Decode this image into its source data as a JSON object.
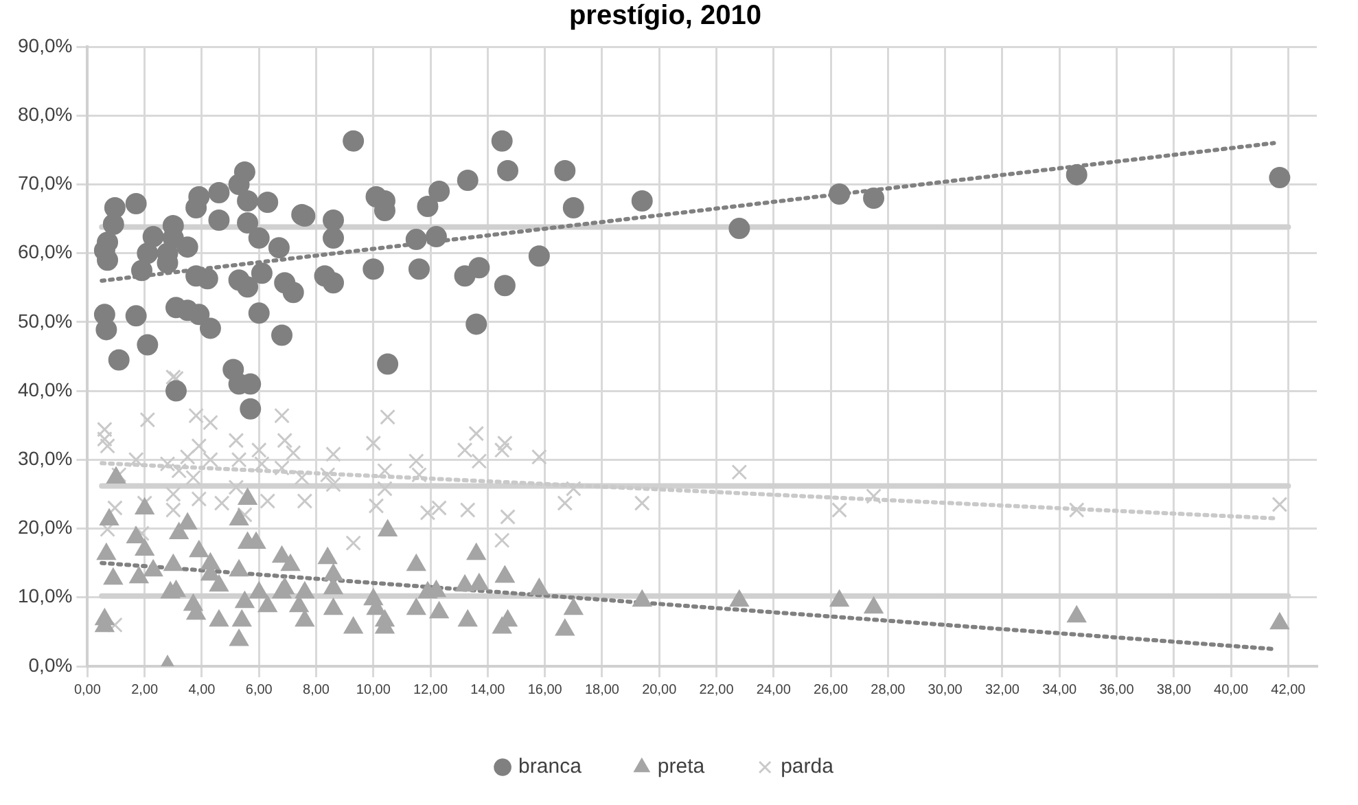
{
  "chart_data": {
    "type": "scatter",
    "title": "prestígio, 2010",
    "xlim": [
      0,
      43
    ],
    "xticks": [
      {
        "value": 0,
        "label": "0,00"
      },
      {
        "value": 2,
        "label": "2,00"
      },
      {
        "value": 4,
        "label": "4,00"
      },
      {
        "value": 6,
        "label": "6,00"
      },
      {
        "value": 8,
        "label": "8,00"
      },
      {
        "value": 10,
        "label": "10,00"
      },
      {
        "value": 12,
        "label": "12,00"
      },
      {
        "value": 14,
        "label": "14,00"
      },
      {
        "value": 16,
        "label": "16,00"
      },
      {
        "value": 18,
        "label": "18,00"
      },
      {
        "value": 20,
        "label": "20,00"
      },
      {
        "value": 22,
        "label": "22,00"
      },
      {
        "value": 24,
        "label": "24,00"
      },
      {
        "value": 26,
        "label": "26,00"
      },
      {
        "value": 28,
        "label": "28,00"
      },
      {
        "value": 30,
        "label": "30,00"
      },
      {
        "value": 32,
        "label": "32,00"
      },
      {
        "value": 34,
        "label": "34,00"
      },
      {
        "value": 36,
        "label": "36,00"
      },
      {
        "value": 38,
        "label": "38,00"
      },
      {
        "value": 40,
        "label": "40,00"
      },
      {
        "value": 42,
        "label": "42,00"
      }
    ],
    "ylim": [
      0,
      90
    ],
    "yticks": [
      {
        "value": 0,
        "label": "0,0%"
      },
      {
        "value": 10,
        "label": "10,0%"
      },
      {
        "value": 20,
        "label": "20,0%"
      },
      {
        "value": 30,
        "label": "30,0%"
      },
      {
        "value": 40,
        "label": "40,0%"
      },
      {
        "value": 50,
        "label": "50,0%"
      },
      {
        "value": 60,
        "label": "60,0%"
      },
      {
        "value": 70,
        "label": "70,0%"
      },
      {
        "value": 80,
        "label": "80,0%"
      },
      {
        "value": 90,
        "label": "90,0%"
      }
    ],
    "grid": true,
    "legend": "bottom",
    "series": [
      {
        "name": "branca",
        "color": "#808080",
        "marker": "circle",
        "x": [
          0.6,
          0.7,
          0.7,
          0.96,
          0.91,
          0.6,
          0.66,
          1.1,
          1.7,
          2.3,
          2.1,
          1.9,
          1.7,
          2.1,
          3.0,
          3.0,
          2.8,
          2.8,
          3.5,
          3.9,
          3.8,
          4.6,
          4.6,
          3.8,
          4.2,
          3.1,
          3.5,
          3.9,
          4.3,
          5.1,
          5.7,
          3.1,
          5.3,
          5.7,
          5.5,
          5.3,
          5.6,
          6.3,
          5.6,
          6.0,
          6.7,
          6.1,
          5.3,
          5.6,
          6.0,
          6.8,
          6.9,
          7.2,
          7.5,
          7.6,
          9.3,
          8.6,
          8.6,
          8.3,
          8.6,
          10.0,
          10.1,
          10.4,
          10.4,
          10.5,
          11.9,
          12.3,
          11.5,
          12.2,
          11.6,
          13.3,
          13.2,
          13.7,
          13.6,
          14.5,
          14.7,
          14.6,
          16.7,
          17.0,
          15.8,
          19.4,
          22.8,
          26.3,
          27.5,
          34.6,
          41.7
        ],
        "values": [
          60.4,
          61.6,
          59.0,
          66.6,
          64.2,
          51.1,
          48.9,
          44.5,
          67.2,
          62.4,
          60.0,
          57.5,
          50.9,
          46.7,
          64.0,
          62.2,
          60.0,
          58.6,
          60.9,
          68.2,
          66.6,
          68.8,
          64.8,
          56.7,
          56.3,
          52.1,
          51.7,
          51.1,
          49.1,
          43.1,
          41.0,
          40.0,
          41.0,
          37.4,
          71.8,
          70.0,
          67.6,
          67.4,
          64.4,
          62.2,
          60.8,
          57.1,
          56.1,
          55.1,
          51.3,
          48.1,
          55.7,
          54.3,
          65.6,
          65.4,
          76.3,
          64.8,
          62.2,
          56.7,
          55.7,
          57.7,
          68.2,
          67.6,
          66.2,
          43.9,
          66.8,
          69.0,
          62.0,
          62.4,
          57.7,
          70.6,
          56.7,
          57.9,
          49.7,
          76.3,
          72.0,
          55.3,
          72.0,
          66.6,
          59.6,
          67.6,
          63.6,
          68.6,
          68.0,
          71.4,
          71.0
        ]
      },
      {
        "name": "preta",
        "color": "#a5a5a5",
        "marker": "triangle",
        "x": [
          0.6,
          0.6,
          0.66,
          0.76,
          1.0,
          0.9,
          1.8,
          2.0,
          2.3,
          2.0,
          1.7,
          2.8,
          2.9,
          3.1,
          3.0,
          3.2,
          3.5,
          3.7,
          3.8,
          3.9,
          4.3,
          4.3,
          4.6,
          4.6,
          5.3,
          5.3,
          5.4,
          5.5,
          5.6,
          5.9,
          5.3,
          5.6,
          6.0,
          6.3,
          6.8,
          7.1,
          6.9,
          6.8,
          7.6,
          7.4,
          7.6,
          8.4,
          8.6,
          8.6,
          8.6,
          9.3,
          10.0,
          10.1,
          10.4,
          10.4,
          10.5,
          11.5,
          11.5,
          11.9,
          12.3,
          12.2,
          13.3,
          13.2,
          13.6,
          13.7,
          14.6,
          14.5,
          14.7,
          14.6,
          15.8,
          17.0,
          16.7,
          19.4,
          22.8,
          26.3,
          27.5,
          34.6,
          41.7
        ],
        "values": [
          5.8,
          6.8,
          16.3,
          21.3,
          27.4,
          12.7,
          12.9,
          16.9,
          13.9,
          22.9,
          18.7,
          0,
          10.7,
          10.9,
          14.7,
          19.3,
          20.7,
          8.9,
          7.6,
          16.7,
          14.9,
          13.3,
          6.6,
          11.7,
          13.9,
          3.8,
          6.6,
          9.3,
          17.9,
          17.9,
          21.3,
          24.3,
          10.7,
          8.7,
          15.9,
          14.7,
          11.3,
          10.7,
          10.7,
          8.7,
          6.6,
          15.7,
          13.3,
          11.3,
          8.3,
          5.6,
          9.7,
          8.3,
          6.6,
          5.6,
          19.7,
          14.7,
          8.3,
          10.7,
          7.8,
          10.9,
          6.6,
          11.7,
          16.3,
          11.9,
          13.0,
          5.6,
          6.6,
          13.0,
          11.2,
          8.3,
          5.3,
          9.5,
          9.5,
          9.5,
          8.5,
          7.2,
          6.2
        ]
      },
      {
        "name": "parda",
        "color": "#c9c9c9",
        "marker": "cross",
        "x": [
          0.6,
          0.6,
          0.7,
          2.1,
          1.7,
          1.1,
          0.96,
          0.7,
          0.96,
          1.9,
          2.0,
          2.8,
          3.2,
          3.5,
          3.8,
          4.3,
          3.9,
          4.3,
          3.7,
          3.0,
          3.0,
          3.9,
          4.7,
          5.2,
          5.3,
          5.2,
          5.5,
          6.0,
          6.1,
          6.8,
          6.9,
          7.2,
          6.8,
          6.3,
          7.5,
          7.6,
          8.6,
          8.4,
          8.6,
          9.3,
          10.0,
          10.4,
          10.5,
          10.4,
          10.1,
          11.5,
          11.6,
          11.9,
          12.3,
          13.3,
          13.2,
          13.6,
          13.7,
          14.5,
          14.7,
          14.5,
          3.0,
          3.1,
          14.6,
          15.8,
          17.0,
          16.7,
          19.4,
          22.8,
          26.3,
          27.5,
          34.6,
          41.7
        ],
        "values": [
          34.4,
          33.0,
          32.0,
          35.8,
          30.0,
          27.8,
          23.0,
          19.9,
          6.0,
          19.3,
          23.7,
          29.4,
          28.4,
          30.4,
          36.4,
          35.4,
          32.0,
          30.0,
          27.4,
          25.0,
          22.7,
          24.3,
          23.7,
          32.8,
          30.0,
          26.0,
          22.0,
          31.4,
          29.4,
          36.4,
          32.8,
          31.0,
          28.8,
          24.0,
          27.4,
          24.0,
          30.8,
          27.8,
          26.4,
          17.9,
          32.4,
          28.4,
          36.2,
          25.8,
          23.3,
          29.8,
          27.8,
          22.3,
          23.0,
          22.7,
          31.4,
          33.8,
          29.8,
          31.4,
          21.7,
          18.3,
          42.0,
          41.8,
          32.4,
          30.4,
          25.8,
          23.7,
          23.7,
          28.2,
          22.7,
          24.7,
          22.7,
          23.5
        ]
      },
      {
        "type": "line",
        "color": "#808080",
        "line_style": "dotted",
        "x": [
          0.5,
          41.5
        ],
        "values": [
          56,
          76
        ]
      },
      {
        "type": "line",
        "color": "#808080",
        "line_style": "dotted",
        "x": [
          0.5,
          41.5
        ],
        "values": [
          15,
          2.5
        ]
      },
      {
        "type": "line",
        "color": "#c9c9c9",
        "line_style": "dotted",
        "x": [
          0.5,
          41.5
        ],
        "values": [
          29.5,
          21.5
        ]
      }
    ],
    "ref_lines": [
      {
        "axis": "y",
        "value": 63.8,
        "color": "#d0d0d0"
      },
      {
        "axis": "y",
        "value": 26.2,
        "color": "#d0d0d0"
      },
      {
        "axis": "y",
        "value": 10.2,
        "color": "#d0d0d0"
      }
    ]
  }
}
